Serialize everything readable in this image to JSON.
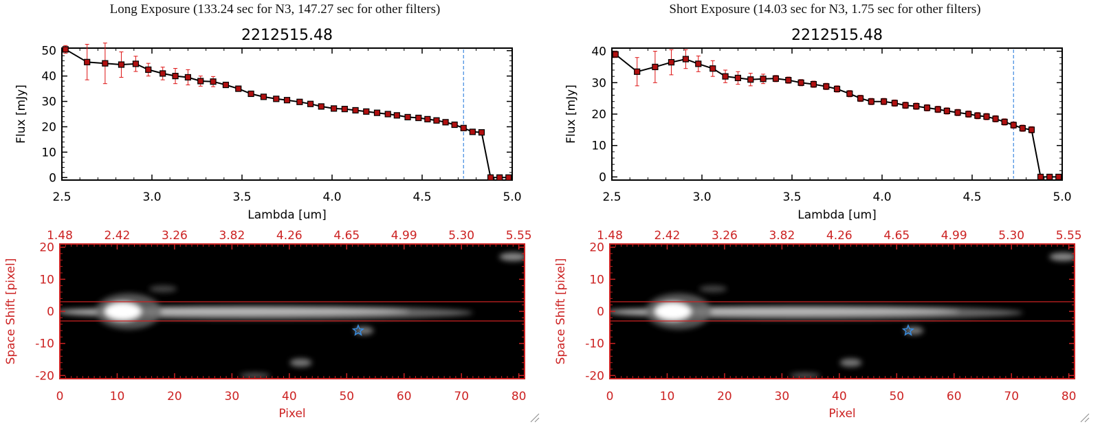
{
  "colors": {
    "axis": "#000000",
    "spec_axis": "#cc2222",
    "error_bar": "#dd1111",
    "point": "#b01010",
    "cutoff_line": "#4a90e2",
    "star": "#3a8de0",
    "aperture_line": "#cc2222"
  },
  "panels": [
    {
      "id": "long",
      "exposure_title": "Long Exposure (133.24 sec for N3, 147.27 sec for other filters)",
      "chart_data": [
        {
          "type": "line",
          "title": "2212515.48",
          "xlabel": "Lambda [um]",
          "ylabel": "Flux [mJy]",
          "xlim": [
            2.5,
            5.0
          ],
          "ylim": [
            -1,
            51
          ],
          "xticks": [
            "2.5",
            "3.0",
            "3.5",
            "4.0",
            "4.5",
            "5.0"
          ],
          "yticks": [
            "0",
            "10",
            "20",
            "30",
            "40",
            "50"
          ],
          "cutoff_x": 4.73,
          "x": [
            2.52,
            2.64,
            2.74,
            2.83,
            2.91,
            2.98,
            3.06,
            3.13,
            3.2,
            3.27,
            3.34,
            3.41,
            3.48,
            3.55,
            3.62,
            3.69,
            3.75,
            3.82,
            3.88,
            3.94,
            4.01,
            4.07,
            4.13,
            4.19,
            4.25,
            4.31,
            4.36,
            4.42,
            4.48,
            4.53,
            4.58,
            4.63,
            4.68,
            4.73,
            4.78,
            4.83,
            4.88,
            4.93,
            4.98
          ],
          "y": [
            50.5,
            45.5,
            45,
            44.5,
            44.8,
            42.5,
            41,
            40,
            39.5,
            38,
            37.8,
            36.5,
            35,
            33,
            31.8,
            31,
            30.5,
            29.8,
            29,
            28,
            27.2,
            27,
            26.5,
            26,
            25.5,
            25,
            24.5,
            23.8,
            23.5,
            23,
            22.5,
            21.8,
            20.8,
            19.5,
            18,
            17.8,
            0,
            0,
            0
          ],
          "yerr": [
            1.5,
            7,
            8,
            5,
            3,
            2.5,
            2.5,
            3,
            3,
            2,
            2,
            1,
            1,
            1,
            1,
            1,
            1,
            1,
            1,
            1,
            1,
            1,
            1,
            1,
            1,
            1,
            1,
            1,
            1,
            1,
            1,
            1,
            1,
            1,
            1,
            1,
            0,
            0,
            0
          ]
        },
        {
          "type": "heatmap",
          "xlabel": "Pixel",
          "ylabel": "Space Shift [pixel]",
          "xlim": [
            0,
            81
          ],
          "ylim": [
            -21,
            21
          ],
          "xticks": [
            "0",
            "10",
            "20",
            "30",
            "40",
            "50",
            "60",
            "70",
            "80"
          ],
          "yticks": [
            "-20",
            "-10",
            "0",
            "10",
            "20"
          ],
          "top_axis_labels": [
            "1.48",
            "2.42",
            "3.26",
            "3.82",
            "4.26",
            "4.65",
            "4.99",
            "5.30",
            "5.55"
          ],
          "aperture_y": [
            3,
            -3
          ],
          "star_marker": {
            "x": 52,
            "y": -6
          }
        }
      ]
    },
    {
      "id": "short",
      "exposure_title": "Short Exposure (14.03 sec for N3, 1.75 sec for other filters)",
      "chart_data": [
        {
          "type": "line",
          "title": "2212515.48",
          "xlabel": "Lambda [um]",
          "ylabel": "Flux [mJy]",
          "xlim": [
            2.5,
            5.0
          ],
          "ylim": [
            -1,
            41
          ],
          "xticks": [
            "2.5",
            "3.0",
            "3.5",
            "4.0",
            "4.5",
            "5.0"
          ],
          "yticks": [
            "0",
            "10",
            "20",
            "30",
            "40"
          ],
          "cutoff_x": 4.73,
          "x": [
            2.52,
            2.64,
            2.74,
            2.83,
            2.91,
            2.98,
            3.06,
            3.13,
            3.2,
            3.27,
            3.34,
            3.41,
            3.48,
            3.55,
            3.62,
            3.69,
            3.75,
            3.82,
            3.88,
            3.94,
            4.01,
            4.07,
            4.13,
            4.19,
            4.25,
            4.31,
            4.36,
            4.42,
            4.48,
            4.53,
            4.58,
            4.63,
            4.68,
            4.73,
            4.78,
            4.83,
            4.88,
            4.93,
            4.98
          ],
          "y": [
            39,
            33.5,
            35,
            36.5,
            37.5,
            36,
            34.5,
            32,
            31.5,
            31,
            31.2,
            31.3,
            30.8,
            30,
            29.5,
            28.8,
            28,
            26.5,
            25,
            24,
            24,
            23.5,
            22.8,
            22.5,
            22,
            21.5,
            21,
            20.5,
            20,
            19.5,
            19.2,
            18.5,
            17.5,
            16.5,
            15.5,
            15,
            0,
            0,
            0
          ],
          "yerr": [
            1,
            4.5,
            5,
            4,
            3,
            2.5,
            2.5,
            2,
            2,
            2,
            1.5,
            1,
            1,
            1,
            1,
            1,
            1,
            1,
            1,
            1,
            1,
            1,
            1,
            1,
            1,
            1,
            1,
            1,
            1,
            1,
            1,
            1,
            1,
            1,
            1,
            1,
            0,
            0,
            0
          ]
        },
        {
          "type": "heatmap",
          "xlabel": "Pixel",
          "ylabel": "Space Shift [pixel]",
          "xlim": [
            0,
            81
          ],
          "ylim": [
            -21,
            21
          ],
          "xticks": [
            "0",
            "10",
            "20",
            "30",
            "40",
            "50",
            "60",
            "70",
            "80"
          ],
          "yticks": [
            "-20",
            "-10",
            "0",
            "10",
            "20"
          ],
          "top_axis_labels": [
            "1.48",
            "2.42",
            "3.26",
            "3.82",
            "4.26",
            "4.65",
            "4.99",
            "5.30",
            "5.55"
          ],
          "aperture_y": [
            3,
            -3
          ],
          "star_marker": {
            "x": 52,
            "y": -6
          }
        }
      ]
    }
  ]
}
